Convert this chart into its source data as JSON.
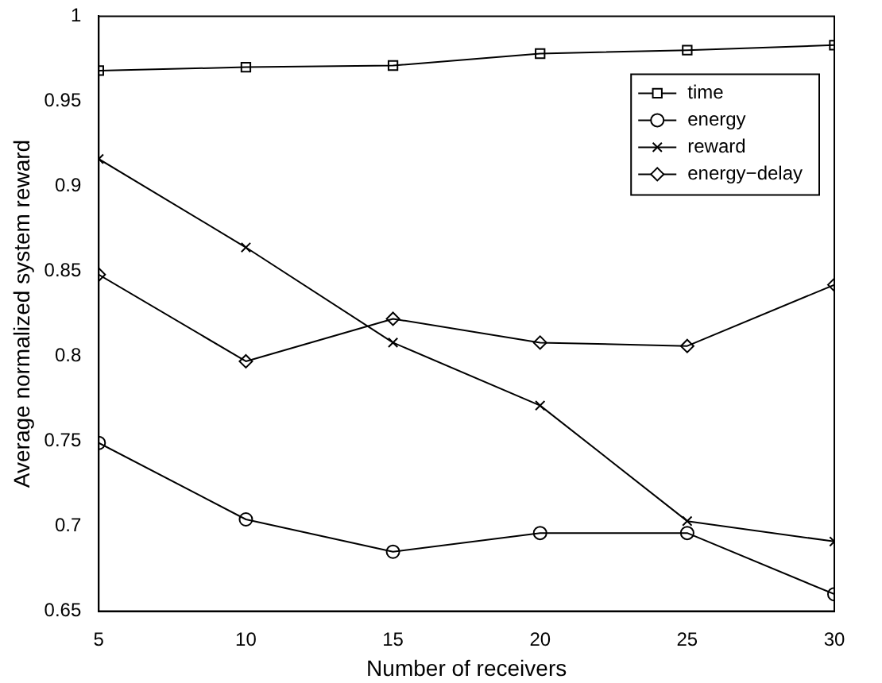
{
  "chart_data": {
    "type": "line",
    "xlabel": "Number of receivers",
    "ylabel": "Average normalized system reward",
    "x": [
      5,
      10,
      15,
      20,
      25,
      30
    ],
    "series": [
      {
        "name": "time",
        "color": "#000000",
        "marker": "square",
        "values": [
          0.968,
          0.97,
          0.971,
          0.978,
          0.98,
          0.983
        ]
      },
      {
        "name": "energy",
        "color": "#000000",
        "marker": "circle",
        "values": [
          0.749,
          0.704,
          0.685,
          0.696,
          0.696,
          0.66
        ]
      },
      {
        "name": "reward",
        "color": "#000000",
        "marker": "cross",
        "values": [
          0.916,
          0.864,
          0.808,
          0.771,
          0.703,
          0.691
        ]
      },
      {
        "name": "energy−delay",
        "color": "#000000",
        "marker": "diamond",
        "values": [
          0.848,
          0.797,
          0.822,
          0.808,
          0.806,
          0.842
        ]
      }
    ],
    "xlim": [
      5,
      30
    ],
    "xticks": [
      5,
      10,
      15,
      20,
      25,
      30
    ],
    "ylim": [
      0.65,
      1
    ],
    "yticks": [
      0.65,
      0.7,
      0.75,
      0.8,
      0.85,
      0.9,
      0.95,
      1
    ],
    "grid": false,
    "legend": "top right",
    "line_style": "solid"
  }
}
